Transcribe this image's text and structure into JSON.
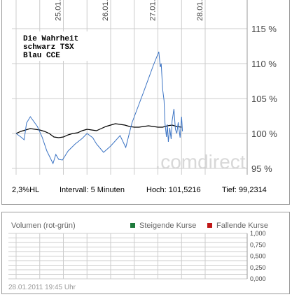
{
  "chart_data": [
    {
      "type": "line",
      "x": [
        "25.01.",
        "26.01.",
        "27.01.",
        "28.01."
      ],
      "xlim": [
        "25.01.",
        "29.01."
      ],
      "y_ticks": [
        "115 %",
        "110 %",
        "105 %",
        "100 %",
        "95 %"
      ],
      "ylim": [
        94.5,
        119
      ],
      "grid": true,
      "legend_lines": [
        "Die Wahrheit",
        "schwarz TSX",
        "Blau CCE"
      ],
      "series": [
        {
          "name": "schwarz TSX",
          "color": "#000000",
          "values": [
            [
              0,
              100.0
            ],
            [
              0.1,
              100.3
            ],
            [
              0.2,
              100.5
            ],
            [
              0.3,
              100.7
            ],
            [
              0.4,
              100.6
            ],
            [
              0.5,
              100.5
            ],
            [
              0.6,
              100.3
            ],
            [
              0.7,
              100.0
            ],
            [
              0.8,
              99.5
            ],
            [
              0.9,
              99.4
            ],
            [
              1.0,
              99.5
            ],
            [
              1.1,
              99.8
            ],
            [
              1.2,
              100.0
            ],
            [
              1.3,
              100.1
            ],
            [
              1.4,
              100.4
            ],
            [
              1.5,
              100.6
            ],
            [
              1.6,
              100.5
            ],
            [
              1.7,
              100.4
            ],
            [
              1.8,
              100.7
            ],
            [
              1.9,
              101.0
            ],
            [
              2.0,
              101.2
            ],
            [
              2.1,
              101.4
            ],
            [
              2.2,
              101.3
            ],
            [
              2.3,
              101.2
            ],
            [
              2.4,
              101.0
            ],
            [
              2.5,
              100.9
            ],
            [
              2.6,
              100.9
            ],
            [
              2.7,
              101.0
            ],
            [
              2.8,
              101.1
            ],
            [
              2.9,
              101.0
            ],
            [
              3.0,
              100.9
            ],
            [
              3.1,
              100.9
            ],
            [
              3.2,
              101.1
            ],
            [
              3.3,
              101.2
            ],
            [
              3.4,
              101.0
            ],
            [
              3.5,
              100.9
            ]
          ]
        },
        {
          "name": "Blau CCE",
          "color": "#3c74c4",
          "values": [
            [
              0,
              100.0
            ],
            [
              0.1,
              99.5
            ],
            [
              0.17,
              99.1
            ],
            [
              0.22,
              101.5
            ],
            [
              0.3,
              102.4
            ],
            [
              0.45,
              101.0
            ],
            [
              0.55,
              99.5
            ],
            [
              0.65,
              97.5
            ],
            [
              0.78,
              95.7
            ],
            [
              0.84,
              97.0
            ],
            [
              0.9,
              96.3
            ],
            [
              0.98,
              96.2
            ],
            [
              1.1,
              97.5
            ],
            [
              1.25,
              98.5
            ],
            [
              1.4,
              99.3
            ],
            [
              1.5,
              100.0
            ],
            [
              1.62,
              99.4
            ],
            [
              1.7,
              98.5
            ],
            [
              1.85,
              97.3
            ],
            [
              2.0,
              98.2
            ],
            [
              2.2,
              99.7
            ],
            [
              2.32,
              98.0
            ],
            [
              2.45,
              101.5
            ],
            [
              2.7,
              106.0
            ],
            [
              2.9,
              109.7
            ],
            [
              3.02,
              111.7
            ],
            [
              3.05,
              109.5
            ],
            [
              3.07,
              110.0
            ],
            [
              3.1,
              106.3
            ],
            [
              3.13,
              104.7
            ],
            [
              3.15,
              101.5
            ],
            [
              3.18,
              99.5
            ],
            [
              3.2,
              101.3
            ],
            [
              3.22,
              98.8
            ],
            [
              3.25,
              100.8
            ],
            [
              3.28,
              99.2
            ],
            [
              3.3,
              101.8
            ],
            [
              3.34,
              103.5
            ],
            [
              3.37,
              100.6
            ],
            [
              3.4,
              100.0
            ],
            [
              3.43,
              101.6
            ],
            [
              3.47,
              99.4
            ],
            [
              3.5,
              102.4
            ],
            [
              3.52,
              100.3
            ]
          ]
        }
      ]
    },
    {
      "type": "bar",
      "title": "Volumen (rot-grün)",
      "ylim": [
        0,
        1
      ],
      "y_ticks": [
        "1,000",
        "0,750",
        "0,500",
        "0,250",
        "0,000"
      ],
      "legend": [
        {
          "name": "Steigende Kurse",
          "color": "#1e7a3c"
        },
        {
          "name": "Fallende Kurse",
          "color": "#c01818"
        }
      ],
      "values": []
    }
  ],
  "stats": {
    "hl": "2,3%HL",
    "intervall": "Intervall: 5 Minuten",
    "hoch": "Hoch: 101,5216",
    "tief": "Tief: 99,2314"
  },
  "watermark": ".comdirect",
  "footer_date": "28.01.2011 19:45 Uhr",
  "colors": {
    "grid": "#cccccc",
    "border": "#9a9a9a",
    "label": "#444444"
  }
}
